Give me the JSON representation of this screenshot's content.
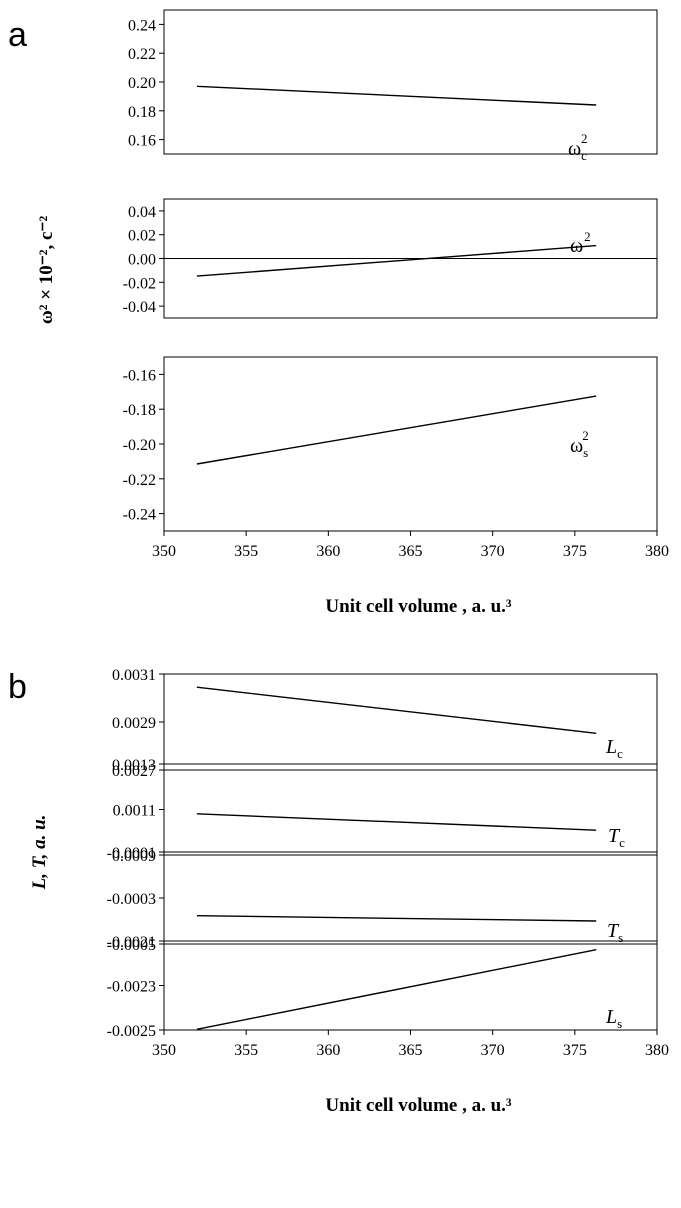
{
  "chart_data": [
    {
      "type": "line",
      "panel": "a",
      "ylabel": "ω² × 10⁻², c⁻²",
      "xlabel": "Unit cell volume , a. u.³",
      "xlim": [
        350,
        380
      ],
      "xticks": [
        "350",
        "355",
        "360",
        "365",
        "370",
        "375",
        "380"
      ],
      "subplots": [
        {
          "ylim": [
            0.15,
            0.25
          ],
          "yticks": [
            "0.24",
            "0.22",
            "0.20",
            "0.18",
            "0.16"
          ],
          "series": [
            {
              "name": "ω",
              "subscript": "c",
              "superscript": "2",
              "x": [
                352,
                376.3
              ],
              "y": [
                0.197,
                0.184
              ]
            }
          ]
        },
        {
          "ylim": [
            -0.05,
            0.05
          ],
          "yticks": [
            "0.04",
            "0.02",
            "0.00",
            "-0.02",
            "-0.04"
          ],
          "zero_line": true,
          "series": [
            {
              "name": "ω",
              "subscript": "",
              "superscript": "2",
              "x": [
                352,
                376.3
              ],
              "y": [
                -0.0148,
                0.0108
              ]
            }
          ]
        },
        {
          "ylim": [
            -0.25,
            -0.15
          ],
          "yticks": [
            "-0.16",
            "-0.18",
            "-0.20",
            "-0.22",
            "-0.24"
          ],
          "series": [
            {
              "name": "ω",
              "subscript": "s",
              "superscript": "2",
              "x": [
                352,
                376.3
              ],
              "y": [
                -0.2115,
                -0.1725
              ]
            }
          ]
        }
      ]
    },
    {
      "type": "line",
      "panel": "b",
      "ylabel": "L, T, a. u.",
      "xlabel": "Unit cell volume , a. u.³",
      "xlim": [
        350,
        380
      ],
      "xticks": [
        "350",
        "355",
        "360",
        "365",
        "370",
        "375",
        "380"
      ],
      "subplots": [
        {
          "ylim": [
            0.0027,
            0.0031
          ],
          "yticks": [
            "0.0031",
            "0.0029",
            "0.0027"
          ],
          "series": [
            {
              "name": "L",
              "subscript": "c",
              "x": [
                352,
                376.3
              ],
              "y": [
                0.003045,
                0.002853
              ]
            }
          ]
        },
        {
          "ylim": [
            0.0009,
            0.0013
          ],
          "yticks": [
            "0.0013",
            "0.0011",
            "0.0009"
          ],
          "series": [
            {
              "name": "T",
              "subscript": "c",
              "x": [
                352,
                376.3
              ],
              "y": [
                0.001081,
                0.001009
              ]
            }
          ]
        },
        {
          "ylim": [
            -0.0005,
            -0.0001
          ],
          "yticks": [
            "-0.0001",
            "-0.0003",
            "-0.0005"
          ],
          "series": [
            {
              "name": "T",
              "subscript": "s",
              "x": [
                352,
                376.3
              ],
              "y": [
                -0.000377,
                -0.0004
              ]
            }
          ]
        },
        {
          "ylim": [
            -0.0025,
            -0.0021
          ],
          "yticks": [
            "-0.0021",
            "-0.0023",
            "-0.0025"
          ],
          "series": [
            {
              "name": "L",
              "subscript": "s",
              "x": [
                352,
                376.3
              ],
              "y": [
                -0.002497,
                -0.002139
              ]
            }
          ]
        }
      ]
    }
  ]
}
